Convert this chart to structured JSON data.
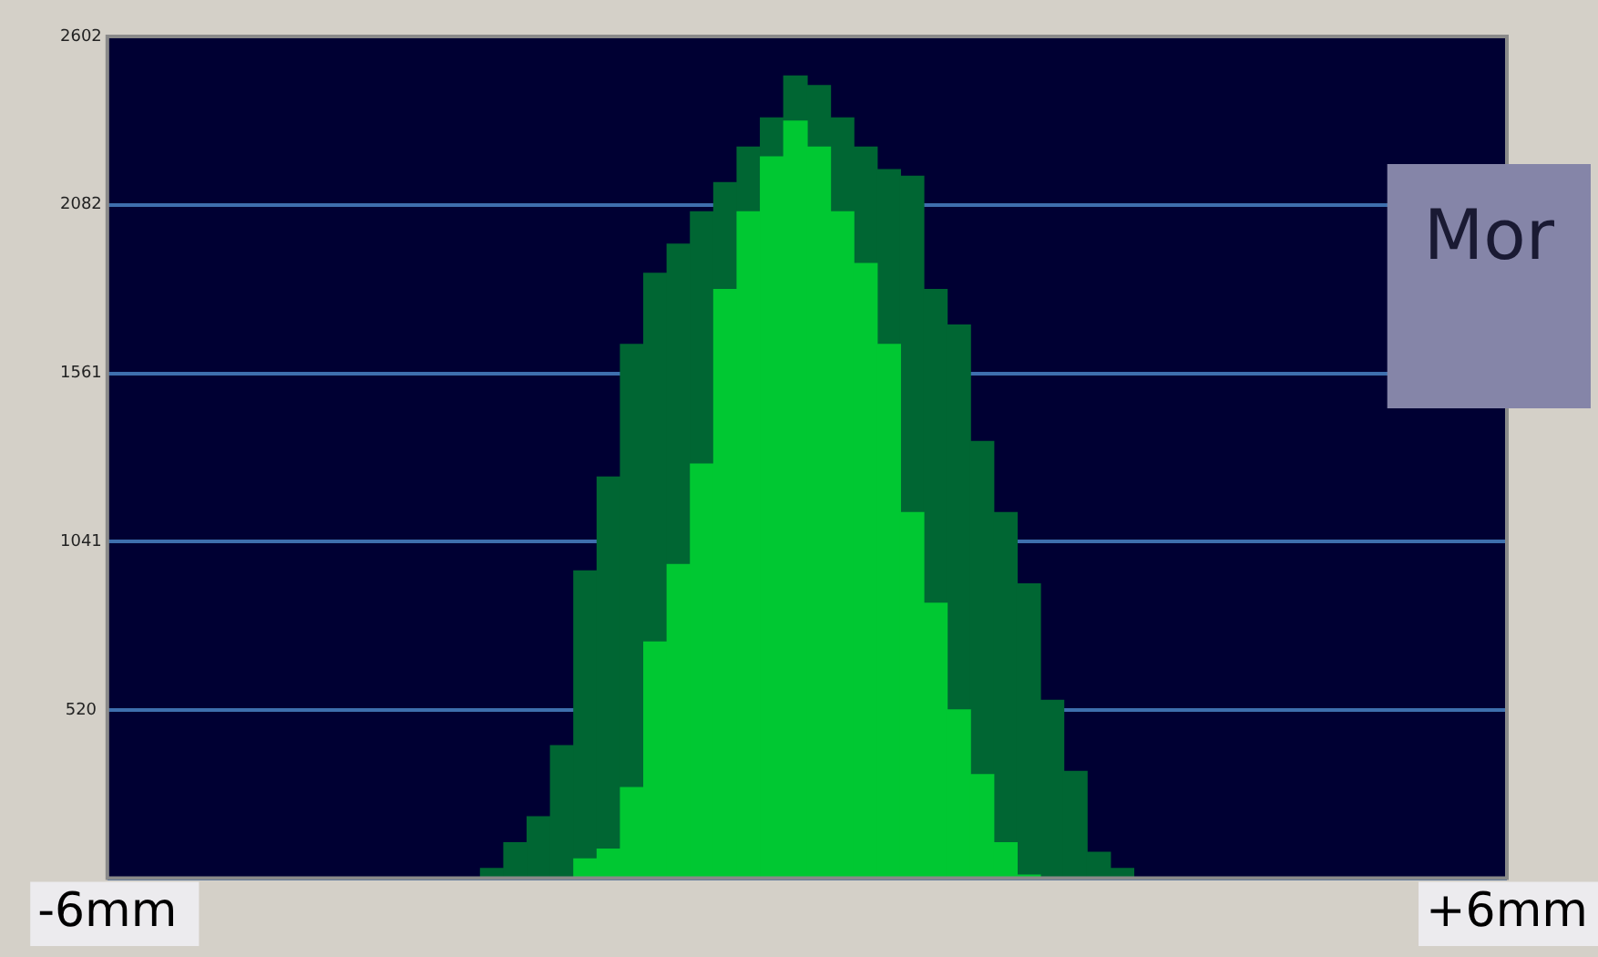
{
  "chart_data": {
    "type": "bar",
    "x": [
      -2.7,
      -2.5,
      -2.3,
      -2.1,
      -1.9,
      -1.7,
      -1.5,
      -1.3,
      -1.1,
      -0.9,
      -0.7,
      -0.5,
      -0.3,
      -0.1,
      0.1,
      0.3,
      0.5,
      0.7,
      0.9,
      1.1,
      1.3,
      1.5,
      1.7,
      1.9,
      2.1,
      2.3,
      2.5,
      2.7
    ],
    "series": [
      {
        "color": "#00c832",
        "values": [
          0,
          0,
          0,
          0,
          60,
          90,
          280,
          730,
          970,
          1280,
          1820,
          2060,
          2230,
          2340,
          2260,
          2060,
          1900,
          1650,
          1130,
          850,
          520,
          320,
          110,
          10,
          0,
          0,
          0,
          0
        ]
      },
      {
        "color": "#006633",
        "values": [
          30,
          110,
          190,
          410,
          890,
          1150,
          1370,
          1140,
          990,
          780,
          330,
          200,
          120,
          140,
          190,
          290,
          360,
          540,
          1040,
          970,
          1190,
          1030,
          1020,
          900,
          550,
          330,
          80,
          30
        ]
      }
    ],
    "stacked": true,
    "xlim": [
      -6,
      6
    ],
    "xticks": [
      {
        "value": -6,
        "label": "-6mm"
      },
      {
        "value": 6,
        "label": "+6mm"
      }
    ],
    "ylim": [
      0,
      2602
    ],
    "yticks": [
      {
        "value": 0,
        "label": null
      },
      520,
      1041,
      1561,
      2082,
      2602
    ],
    "grid": "y",
    "annotations": [
      "Mor"
    ]
  }
}
